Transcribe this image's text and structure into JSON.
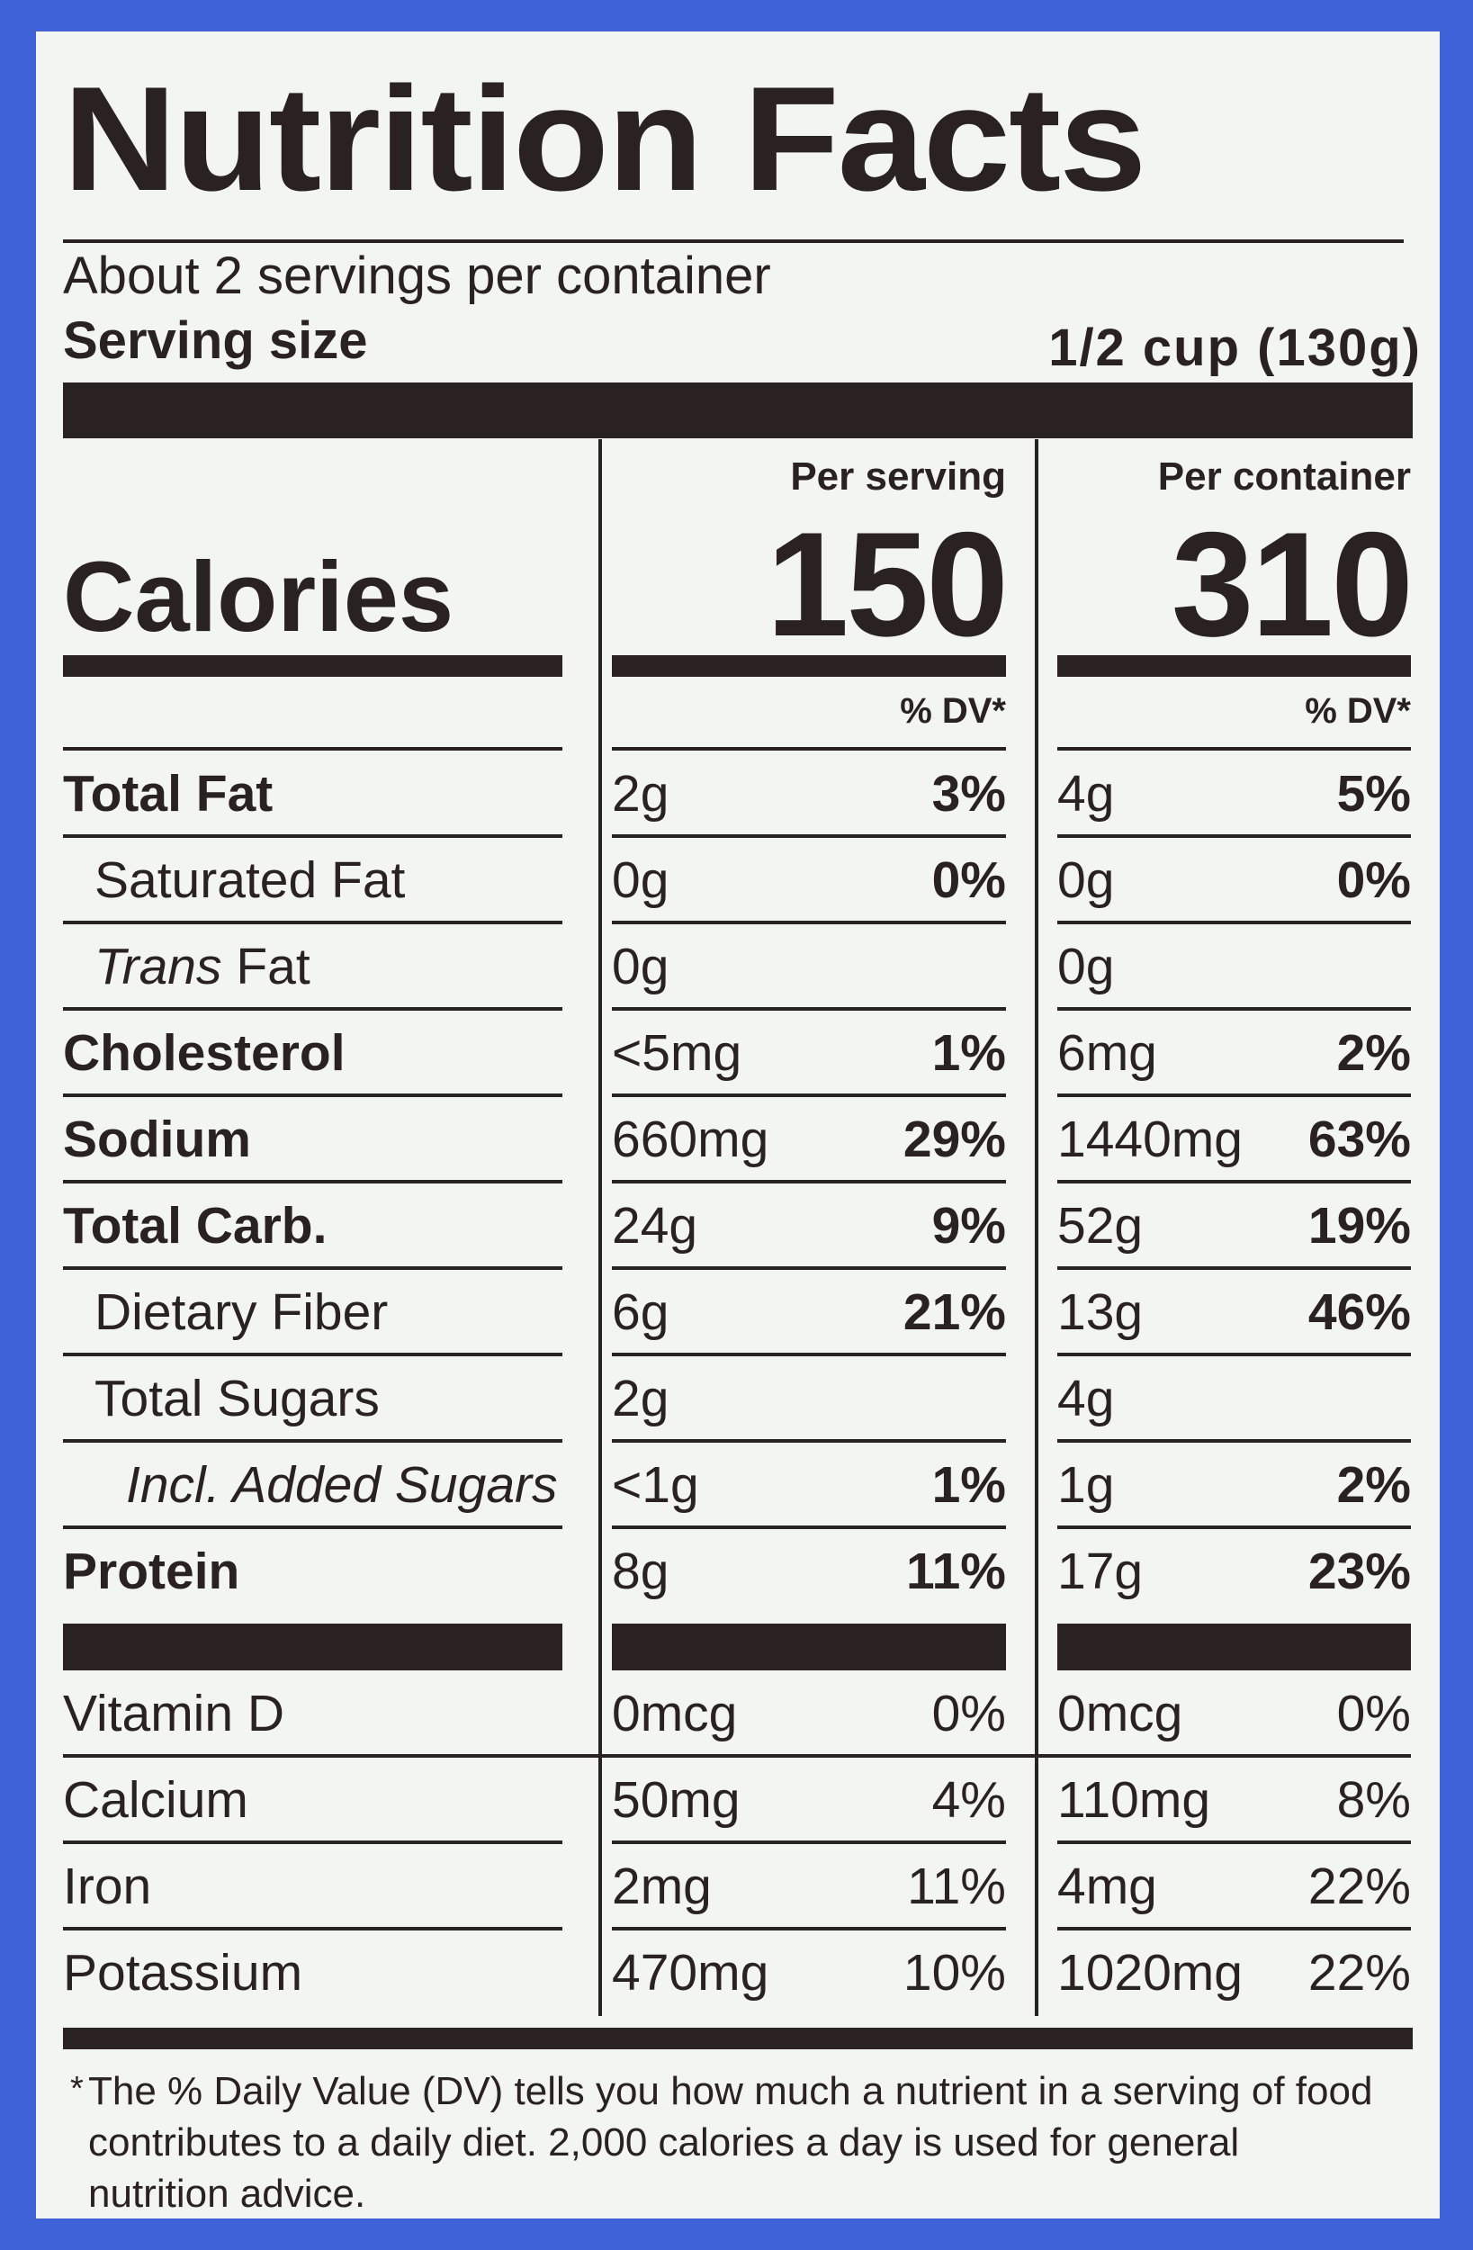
{
  "title": "Nutrition Facts",
  "servings": "About 2 servings per container",
  "serving_size": {
    "label": "Serving size",
    "value": "1/2 cup (130g)"
  },
  "columns": [
    "Per serving",
    "Per container"
  ],
  "calories": {
    "label": "Calories",
    "values": [
      "150",
      "310"
    ]
  },
  "dv_header": [
    "% DV*",
    "% DV*"
  ],
  "nutrients": [
    {
      "name": "Total Fat",
      "bold": true,
      "indent": 0,
      "serving": [
        "2g",
        "3%"
      ],
      "container": [
        "4g",
        "5%"
      ]
    },
    {
      "name": "Saturated Fat",
      "bold": false,
      "indent": 1,
      "serving": [
        "0g",
        "0%"
      ],
      "container": [
        "0g",
        "0%"
      ]
    },
    {
      "name_italic": "Trans",
      "name": "Fat",
      "bold": false,
      "indent": 1,
      "serving": [
        "0g",
        null
      ],
      "container": [
        "0g",
        null
      ]
    },
    {
      "name": "Cholesterol",
      "bold": true,
      "indent": 0,
      "serving": [
        "<5mg",
        "1%"
      ],
      "container": [
        "6mg",
        "2%"
      ]
    },
    {
      "name": "Sodium",
      "bold": true,
      "indent": 0,
      "serving": [
        "660mg",
        "29%"
      ],
      "container": [
        "1440mg",
        "63%"
      ]
    },
    {
      "name": "Total Carb.",
      "bold": true,
      "indent": 0,
      "serving": [
        "24g",
        "9%"
      ],
      "container": [
        "52g",
        "19%"
      ]
    },
    {
      "name": "Dietary Fiber",
      "bold": false,
      "indent": 1,
      "serving": [
        "6g",
        "21%"
      ],
      "container": [
        "13g",
        "46%"
      ]
    },
    {
      "name": "Total Sugars",
      "bold": false,
      "indent": 1,
      "serving": [
        "2g",
        null
      ],
      "container": [
        "4g",
        null
      ]
    },
    {
      "name": "Incl. Added Sugars",
      "bold": false,
      "italic": true,
      "indent": 2,
      "serving": [
        "<1g",
        "1%"
      ],
      "container": [
        "1g",
        "2%"
      ]
    },
    {
      "name": "Protein",
      "bold": true,
      "indent": 0,
      "serving": [
        "8g",
        "11%"
      ],
      "container": [
        "17g",
        "23%"
      ]
    }
  ],
  "vitamins": [
    {
      "name": "Vitamin D",
      "serving": [
        "0mcg",
        "0%"
      ],
      "container": [
        "0mcg",
        "0%"
      ]
    },
    {
      "name": "Calcium",
      "serving": [
        "50mg",
        "4%"
      ],
      "container": [
        "110mg",
        "8%"
      ]
    },
    {
      "name": "Iron",
      "serving": [
        "2mg",
        "11%"
      ],
      "container": [
        "4mg",
        "22%"
      ]
    },
    {
      "name": "Potassium",
      "serving": [
        "470mg",
        "10%"
      ],
      "container": [
        "1020mg",
        "22%"
      ]
    }
  ],
  "footnote": {
    "mark": "*",
    "text": "The % Daily Value (DV) tells you how much a nutrient in a serving of food contributes to a daily diet. 2,000 calories a day is used for general nutrition advice."
  }
}
